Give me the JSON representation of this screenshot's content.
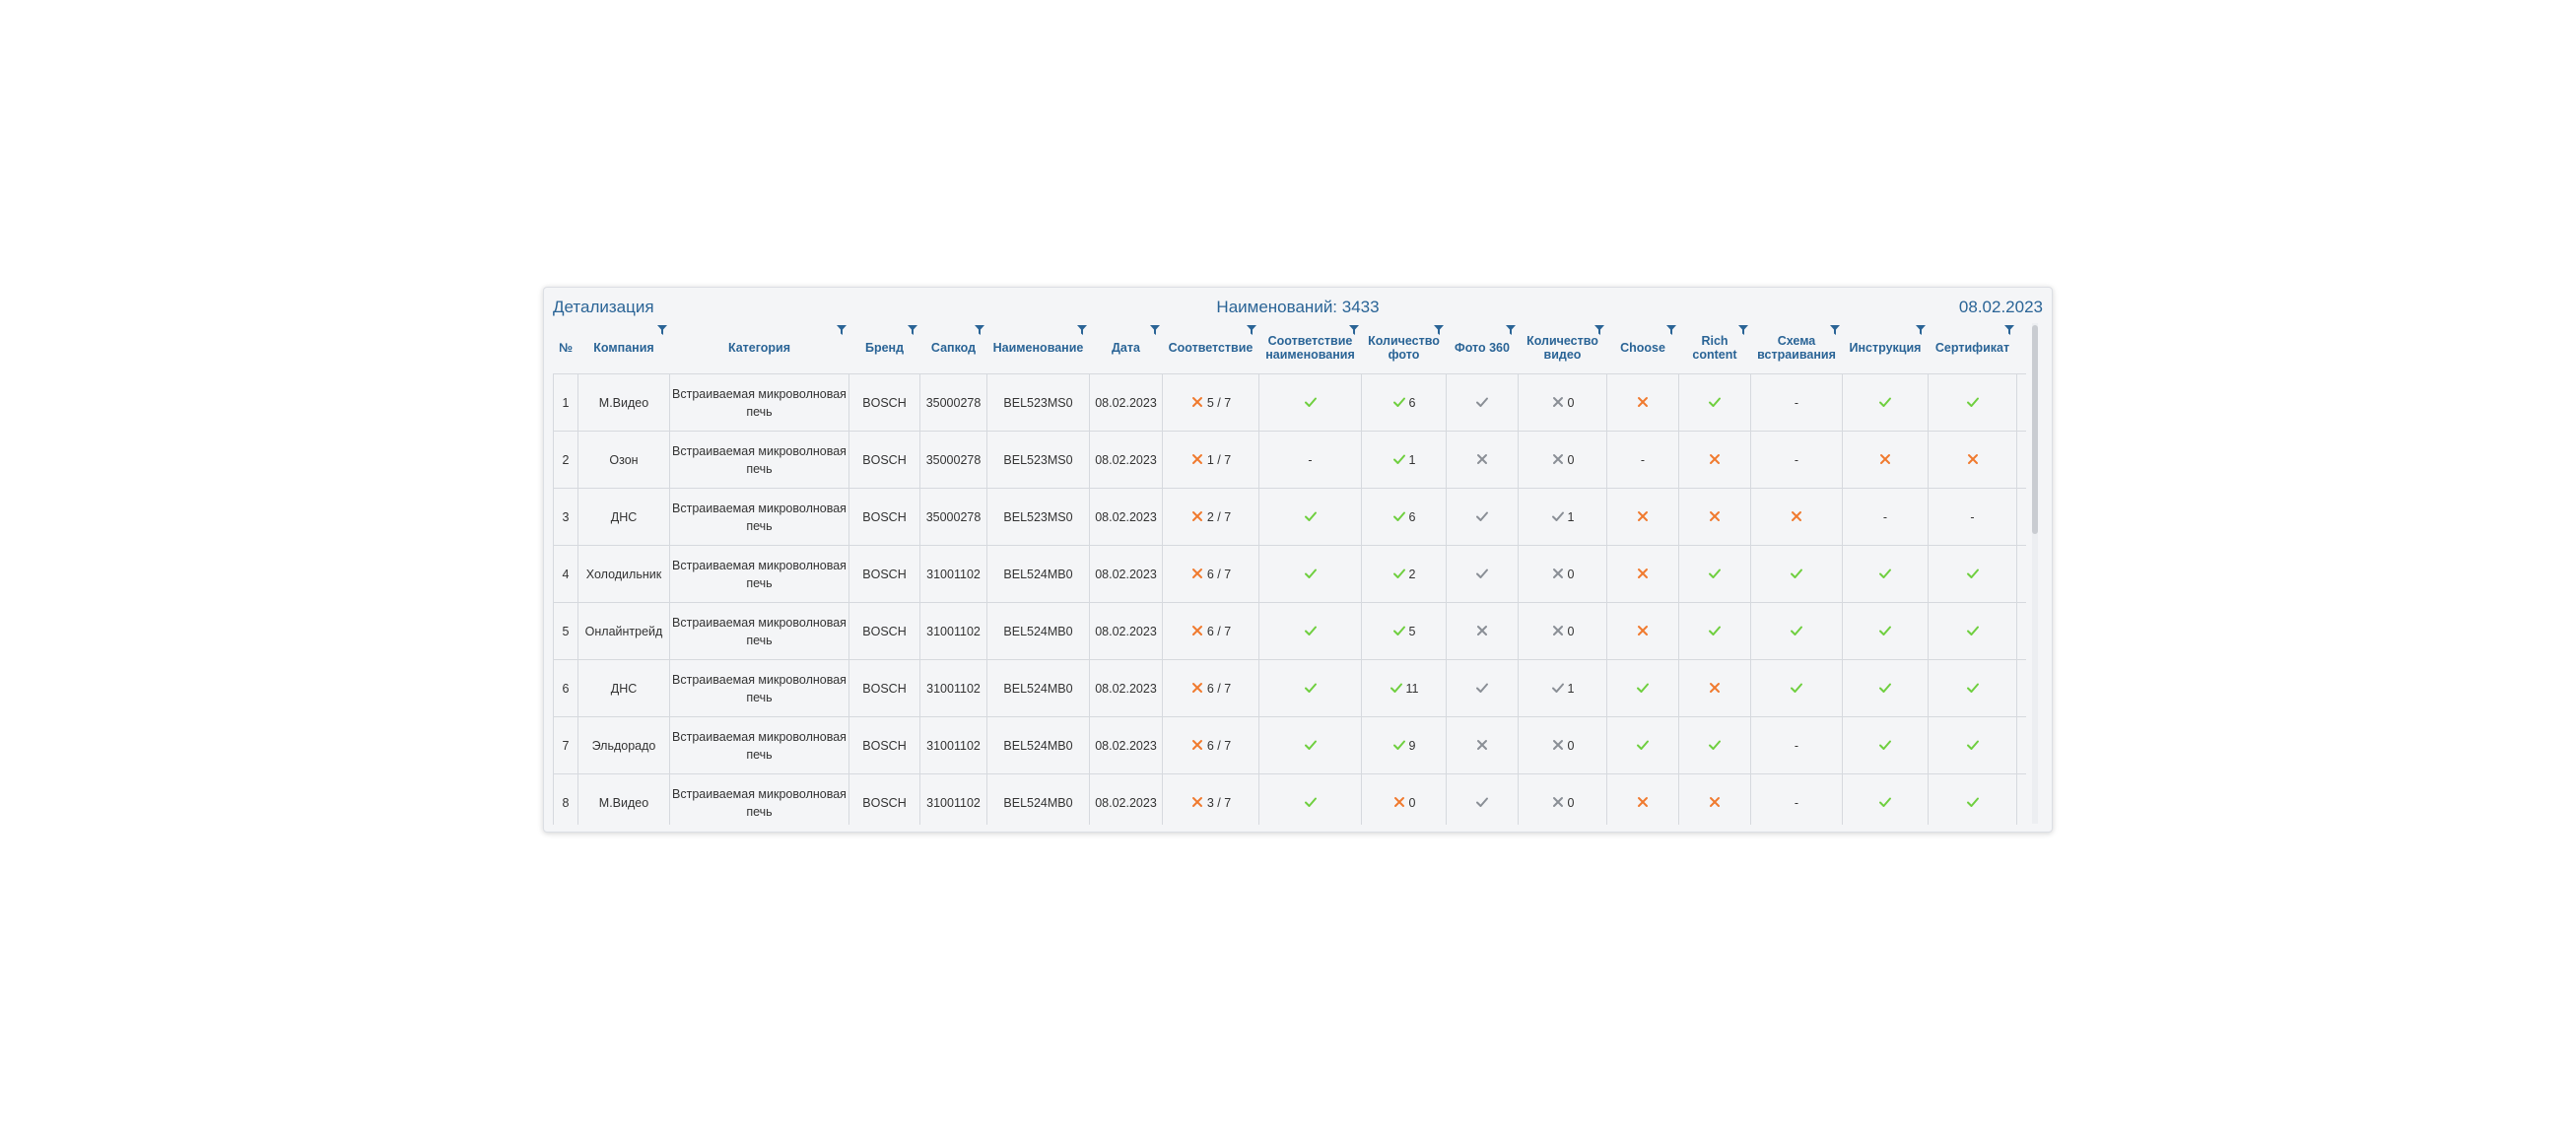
{
  "header": {
    "title": "Детализация",
    "count_label": "Наименований: 3433",
    "date": "08.02.2023"
  },
  "columns": [
    "№",
    "Компания",
    "Категория",
    "Бренд",
    "Сапкод",
    "Наименование",
    "Дата",
    "Соответствие",
    "Соответствие наименования",
    "Количество фото",
    "Фото 360",
    "Количество видео",
    "Choose",
    "Rich content",
    "Схема встраивания",
    "Инструкция",
    "Сертификат"
  ],
  "icons": {
    "ok": "check-icon",
    "fail": "cross-icon",
    "neutral": "gray-check-icon",
    "neutral_fail": "gray-cross-icon",
    "link": "external-link-icon"
  },
  "colors": {
    "header_text": "#2a6496",
    "ok": "#6fcf3f",
    "fail": "#f07a2e",
    "neutral": "#8a8f96"
  },
  "rows": [
    {
      "n": "1",
      "company": "М.Видео",
      "category": "Встраиваемая микроволновая печь",
      "brand": "BOSCH",
      "sap": "35000278",
      "name": "BEL523MS0",
      "date": "08.02.2023",
      "match": {
        "icon": "fail",
        "text": "5 / 7"
      },
      "name_match": {
        "icon": "ok",
        "text": ""
      },
      "photos": {
        "icon": "ok",
        "text": "6"
      },
      "p360": {
        "icon": "neutral",
        "text": ""
      },
      "video": {
        "icon": "neutral_fail",
        "text": "0"
      },
      "choose": {
        "icon": "fail",
        "text": ""
      },
      "rich": {
        "icon": "ok",
        "text": ""
      },
      "scheme": {
        "icon": "none",
        "text": "-"
      },
      "instr": {
        "icon": "ok",
        "text": ""
      },
      "cert": {
        "icon": "ok",
        "text": ""
      }
    },
    {
      "n": "2",
      "company": "Озон",
      "category": "Встраиваемая микроволновая печь",
      "brand": "BOSCH",
      "sap": "35000278",
      "name": "BEL523MS0",
      "date": "08.02.2023",
      "match": {
        "icon": "fail",
        "text": "1 / 7"
      },
      "name_match": {
        "icon": "none",
        "text": "-"
      },
      "photos": {
        "icon": "ok",
        "text": "1"
      },
      "p360": {
        "icon": "neutral_fail",
        "text": ""
      },
      "video": {
        "icon": "neutral_fail",
        "text": "0"
      },
      "choose": {
        "icon": "none",
        "text": "-"
      },
      "rich": {
        "icon": "fail",
        "text": ""
      },
      "scheme": {
        "icon": "none",
        "text": "-"
      },
      "instr": {
        "icon": "fail",
        "text": ""
      },
      "cert": {
        "icon": "fail",
        "text": ""
      }
    },
    {
      "n": "3",
      "company": "ДНС",
      "category": "Встраиваемая микроволновая печь",
      "brand": "BOSCH",
      "sap": "35000278",
      "name": "BEL523MS0",
      "date": "08.02.2023",
      "match": {
        "icon": "fail",
        "text": "2 / 7"
      },
      "name_match": {
        "icon": "ok",
        "text": ""
      },
      "photos": {
        "icon": "ok",
        "text": "6"
      },
      "p360": {
        "icon": "neutral",
        "text": ""
      },
      "video": {
        "icon": "neutral",
        "text": "1"
      },
      "choose": {
        "icon": "fail",
        "text": ""
      },
      "rich": {
        "icon": "fail",
        "text": ""
      },
      "scheme": {
        "icon": "fail",
        "text": ""
      },
      "instr": {
        "icon": "none",
        "text": "-"
      },
      "cert": {
        "icon": "none",
        "text": "-"
      }
    },
    {
      "n": "4",
      "company": "Холодильник",
      "category": "Встраиваемая микроволновая печь",
      "brand": "BOSCH",
      "sap": "31001102",
      "name": "BEL524MB0",
      "date": "08.02.2023",
      "match": {
        "icon": "fail",
        "text": "6 / 7"
      },
      "name_match": {
        "icon": "ok",
        "text": ""
      },
      "photos": {
        "icon": "ok",
        "text": "2"
      },
      "p360": {
        "icon": "neutral",
        "text": ""
      },
      "video": {
        "icon": "neutral_fail",
        "text": "0"
      },
      "choose": {
        "icon": "fail",
        "text": ""
      },
      "rich": {
        "icon": "ok",
        "text": ""
      },
      "scheme": {
        "icon": "ok",
        "text": ""
      },
      "instr": {
        "icon": "ok",
        "text": ""
      },
      "cert": {
        "icon": "ok",
        "text": ""
      }
    },
    {
      "n": "5",
      "company": "Онлайнтрейд",
      "category": "Встраиваемая микроволновая печь",
      "brand": "BOSCH",
      "sap": "31001102",
      "name": "BEL524MB0",
      "date": "08.02.2023",
      "match": {
        "icon": "fail",
        "text": "6 / 7"
      },
      "name_match": {
        "icon": "ok",
        "text": ""
      },
      "photos": {
        "icon": "ok",
        "text": "5"
      },
      "p360": {
        "icon": "neutral_fail",
        "text": ""
      },
      "video": {
        "icon": "neutral_fail",
        "text": "0"
      },
      "choose": {
        "icon": "fail",
        "text": ""
      },
      "rich": {
        "icon": "ok",
        "text": ""
      },
      "scheme": {
        "icon": "ok",
        "text": ""
      },
      "instr": {
        "icon": "ok",
        "text": ""
      },
      "cert": {
        "icon": "ok",
        "text": ""
      }
    },
    {
      "n": "6",
      "company": "ДНС",
      "category": "Встраиваемая микроволновая печь",
      "brand": "BOSCH",
      "sap": "31001102",
      "name": "BEL524MB0",
      "date": "08.02.2023",
      "match": {
        "icon": "fail",
        "text": "6 / 7"
      },
      "name_match": {
        "icon": "ok",
        "text": ""
      },
      "photos": {
        "icon": "ok",
        "text": "11"
      },
      "p360": {
        "icon": "neutral",
        "text": ""
      },
      "video": {
        "icon": "neutral",
        "text": "1"
      },
      "choose": {
        "icon": "ok",
        "text": ""
      },
      "rich": {
        "icon": "fail",
        "text": ""
      },
      "scheme": {
        "icon": "ok",
        "text": ""
      },
      "instr": {
        "icon": "ok",
        "text": ""
      },
      "cert": {
        "icon": "ok",
        "text": ""
      }
    },
    {
      "n": "7",
      "company": "Эльдорадо",
      "category": "Встраиваемая микроволновая печь",
      "brand": "BOSCH",
      "sap": "31001102",
      "name": "BEL524MB0",
      "date": "08.02.2023",
      "match": {
        "icon": "fail",
        "text": "6 / 7"
      },
      "name_match": {
        "icon": "ok",
        "text": ""
      },
      "photos": {
        "icon": "ok",
        "text": "9"
      },
      "p360": {
        "icon": "neutral_fail",
        "text": ""
      },
      "video": {
        "icon": "neutral_fail",
        "text": "0"
      },
      "choose": {
        "icon": "ok",
        "text": ""
      },
      "rich": {
        "icon": "ok",
        "text": ""
      },
      "scheme": {
        "icon": "none",
        "text": "-"
      },
      "instr": {
        "icon": "ok",
        "text": ""
      },
      "cert": {
        "icon": "ok",
        "text": ""
      }
    },
    {
      "n": "8",
      "company": "М.Видео",
      "category": "Встраиваемая микроволновая печь",
      "brand": "BOSCH",
      "sap": "31001102",
      "name": "BEL524MB0",
      "date": "08.02.2023",
      "match": {
        "icon": "fail",
        "text": "3 / 7"
      },
      "name_match": {
        "icon": "ok",
        "text": ""
      },
      "photos": {
        "icon": "fail",
        "text": "0"
      },
      "p360": {
        "icon": "neutral",
        "text": ""
      },
      "video": {
        "icon": "neutral_fail",
        "text": "0"
      },
      "choose": {
        "icon": "fail",
        "text": ""
      },
      "rich": {
        "icon": "fail",
        "text": ""
      },
      "scheme": {
        "icon": "none",
        "text": "-"
      },
      "instr": {
        "icon": "ok",
        "text": ""
      },
      "cert": {
        "icon": "ok",
        "text": ""
      }
    }
  ]
}
